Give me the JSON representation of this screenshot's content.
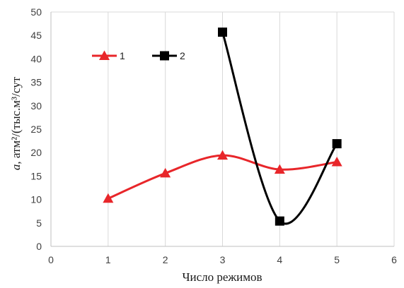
{
  "chart_data": {
    "type": "line",
    "xlabel": "Число режимов",
    "ylabel_prefix": "a",
    "ylabel_main": ", атм²/(тыс.м³/сут",
    "xlim": [
      0,
      6
    ],
    "ylim": [
      0,
      50
    ],
    "x_ticks": [
      "0",
      "1",
      "2",
      "3",
      "4",
      "5",
      "6"
    ],
    "y_ticks": [
      "0",
      "5",
      "10",
      "15",
      "20",
      "25",
      "30",
      "35",
      "40",
      "45",
      "50"
    ],
    "grid": "vertical",
    "legend_position": "top-left",
    "series": [
      {
        "name": "1",
        "color": "#e8262a",
        "marker": "triangle",
        "smooth": true,
        "x": [
          1,
          2,
          3,
          4,
          5
        ],
        "y": [
          10.2,
          15.6,
          19.4,
          16.4,
          18.0
        ]
      },
      {
        "name": "2",
        "color": "#000000",
        "marker": "square",
        "smooth": true,
        "x": [
          3,
          4,
          5
        ],
        "y": [
          45.7,
          5.4,
          21.9
        ]
      }
    ]
  }
}
